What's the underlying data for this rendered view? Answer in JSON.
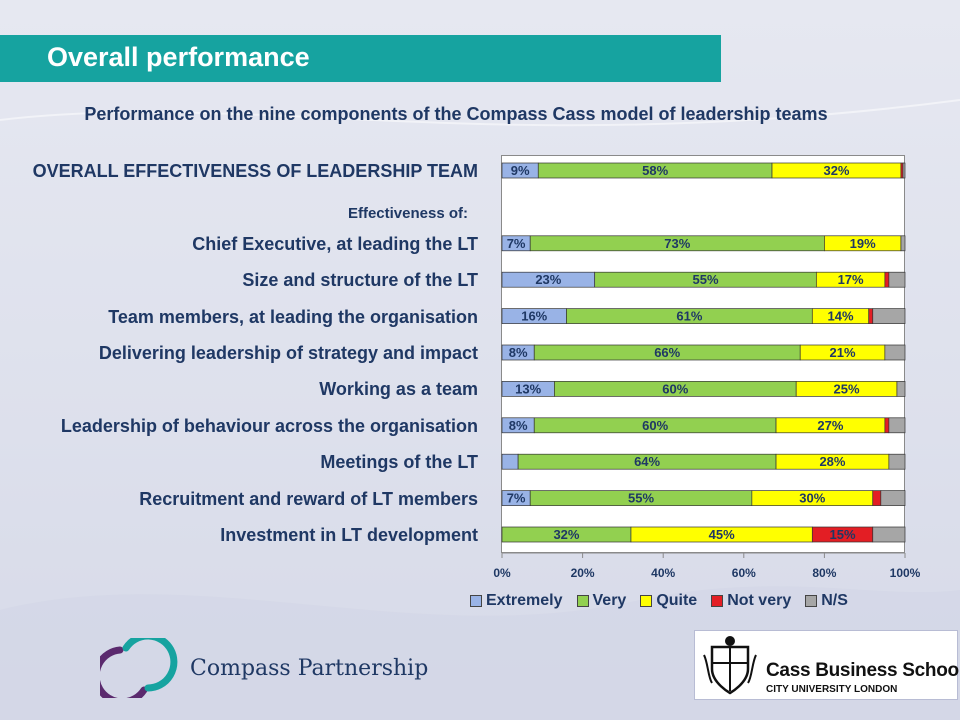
{
  "header": {
    "title": "Overall performance"
  },
  "subtitle": "Performance on the nine components of the Compass Cass model of leadership teams",
  "effectiveness_label": "Effectiveness of:",
  "chart_data": {
    "type": "bar",
    "orientation": "horizontal",
    "stacked": "percent",
    "categories": [
      "OVERALL EFFECTIVENESS OF LEADERSHIP TEAM",
      "",
      "Chief Executive, at leading the LT",
      "Size and structure of the LT",
      "Team members, at leading the organisation",
      "Delivering leadership of strategy and impact",
      "Working as a team",
      "Leadership of behaviour across the organisation",
      "Meetings of the LT",
      "Recruitment and reward of LT members",
      "Investment in LT development"
    ],
    "series": [
      {
        "name": "Extremely",
        "color": "#99b3e6",
        "values": [
          9,
          null,
          7,
          23,
          16,
          8,
          13,
          8,
          4,
          7,
          0
        ],
        "labels": [
          "9%",
          "",
          "7%",
          "23%",
          "16%",
          "8%",
          "13%",
          "8%",
          "",
          "7%",
          ""
        ]
      },
      {
        "name": "Very",
        "color": "#92d050",
        "values": [
          58,
          null,
          73,
          55,
          61,
          66,
          60,
          60,
          64,
          55,
          32
        ],
        "labels": [
          "58%",
          "",
          "73%",
          "55%",
          "61%",
          "66%",
          "60%",
          "60%",
          "64%",
          "55%",
          "32%"
        ]
      },
      {
        "name": "Quite",
        "color": "#ffff00",
        "values": [
          32,
          null,
          19,
          17,
          14,
          21,
          25,
          27,
          28,
          30,
          45
        ],
        "labels": [
          "32%",
          "",
          "19%",
          "17%",
          "14%",
          "21%",
          "25%",
          "27%",
          "28%",
          "30%",
          "45%"
        ]
      },
      {
        "name": "Not very",
        "color": "#e31e24",
        "values": [
          0.5,
          null,
          0,
          1,
          1,
          0,
          0,
          1,
          0,
          2,
          15
        ],
        "labels": [
          "",
          "",
          "",
          "",
          "",
          "",
          "",
          "",
          "",
          "",
          "15%"
        ]
      },
      {
        "name": "N/S",
        "color": "#a6a6a6",
        "values": [
          0.5,
          null,
          1,
          4,
          8,
          5,
          2,
          4,
          4,
          6,
          8
        ],
        "labels": [
          "",
          "",
          "",
          "",
          "",
          "",
          "",
          "",
          "",
          "",
          ""
        ]
      }
    ],
    "xlim": [
      0,
      100
    ],
    "xticks": [
      "0%",
      "20%",
      "40%",
      "60%",
      "80%",
      "100%"
    ],
    "legend_position": "bottom",
    "grid": false
  },
  "logos": {
    "compass": "Compass Partnership",
    "cass_name": "Cass Business School",
    "cass_sub": "CITY UNIVERSITY LONDON"
  }
}
